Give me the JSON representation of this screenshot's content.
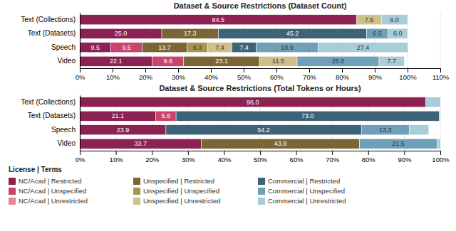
{
  "chart_data": [
    {
      "type": "bar",
      "orientation": "horizontal",
      "stacked": true,
      "data_labels": true,
      "grid": true,
      "title": "Dataset & Source Restrictions (Dataset Count)",
      "categories": [
        "Text (Collections)",
        "Text (Datasets)",
        "Speech",
        "Video"
      ],
      "xlim": [
        0,
        110
      ],
      "xticks": [
        {
          "value": 0,
          "label": "0%"
        },
        {
          "value": 10,
          "label": "10%"
        },
        {
          "value": 20,
          "label": "20%"
        },
        {
          "value": 30,
          "label": "30%"
        },
        {
          "value": 40,
          "label": "40%"
        },
        {
          "value": 50,
          "label": "50%"
        },
        {
          "value": 60,
          "label": "60%"
        },
        {
          "value": 70,
          "label": "70%"
        },
        {
          "value": 80,
          "label": "80%"
        },
        {
          "value": 90,
          "label": "90%"
        },
        {
          "value": 100,
          "label": "100%"
        },
        {
          "value": 110,
          "label": "110%"
        }
      ],
      "series": [
        {
          "name": "NC/Acad | Restricted",
          "color": "#8B2252",
          "values": [
            84.5,
            25.0,
            9.5,
            22.1
          ],
          "value_labels": [
            "84.5",
            "25.0",
            "9.5",
            "22.1"
          ]
        },
        {
          "name": "NC/Acad | Unspecified",
          "color": "#C8436E",
          "values": [
            0,
            0,
            9.5,
            9.6
          ],
          "value_labels": [
            null,
            null,
            "9.5",
            "9.6"
          ]
        },
        {
          "name": "NC/Acad | Unrestricted",
          "color": "#E8849A",
          "values": [
            0,
            0,
            0,
            0
          ],
          "value_labels": [
            null,
            null,
            null,
            null
          ]
        },
        {
          "name": "Unspecified | Restricted",
          "color": "#7A6635",
          "values": [
            0,
            17.3,
            13.7,
            23.1
          ],
          "value_labels": [
            null,
            "17.3",
            "13.7",
            "23.1"
          ]
        },
        {
          "name": "Unspecified | Unspecified",
          "color": "#A89455",
          "values": [
            0,
            0,
            6.3,
            0
          ],
          "value_labels": [
            null,
            null,
            "6.3",
            null
          ]
        },
        {
          "name": "Unspecified | Unrestricted",
          "color": "#CEC08A",
          "values": [
            7.5,
            0,
            7.4,
            11.5
          ],
          "value_labels": [
            "7.5",
            null,
            "7.4",
            "11.5"
          ]
        },
        {
          "name": "Commercial | Restricted",
          "color": "#3E6278",
          "values": [
            0,
            45.2,
            7.4,
            0
          ],
          "value_labels": [
            null,
            "45.2",
            "7.4",
            null
          ]
        },
        {
          "name": "Commercial | Unspecified",
          "color": "#6FA0BA",
          "values": [
            0,
            6.5,
            18.9,
            25.0
          ],
          "value_labels": [
            null,
            "6.5",
            "18.9",
            "25.0"
          ]
        },
        {
          "name": "Commercial | Unrestricted",
          "color": "#A8CDD8",
          "values": [
            8.0,
            6.0,
            27.4,
            7.7
          ],
          "value_labels": [
            "8.0",
            "6.0",
            "27.4",
            "7.7"
          ]
        }
      ]
    },
    {
      "type": "bar",
      "orientation": "horizontal",
      "stacked": true,
      "data_labels": true,
      "grid": true,
      "title": "Dataset & Source Restrictions (Total Tokens or Hours)",
      "categories": [
        "Text (Collections)",
        "Text (Datasets)",
        "Speech",
        "Video"
      ],
      "xlim": [
        0,
        100
      ],
      "xticks": [
        {
          "value": 0,
          "label": "0%"
        },
        {
          "value": 10,
          "label": "10%"
        },
        {
          "value": 20,
          "label": "20%"
        },
        {
          "value": 30,
          "label": "30%"
        },
        {
          "value": 40,
          "label": "40%"
        },
        {
          "value": 50,
          "label": "50%"
        },
        {
          "value": 60,
          "label": "60%"
        },
        {
          "value": 70,
          "label": "70%"
        },
        {
          "value": 80,
          "label": "80%"
        },
        {
          "value": 90,
          "label": "90%"
        },
        {
          "value": 100,
          "label": "100%"
        }
      ],
      "legend": "bottom",
      "legend_title": "License | Terms",
      "series": [
        {
          "name": "NC/Acad | Restricted",
          "color": "#8B2252",
          "values": [
            96.0,
            21.1,
            23.9,
            33.7
          ],
          "value_labels": [
            "96.0",
            "21.1",
            "23.9",
            "33.7"
          ]
        },
        {
          "name": "NC/Acad | Unspecified",
          "color": "#C8436E",
          "values": [
            0,
            5.6,
            0,
            0
          ],
          "value_labels": [
            null,
            "5.6",
            null,
            null
          ]
        },
        {
          "name": "NC/Acad | Unrestricted",
          "color": "#E8849A",
          "values": [
            0,
            0,
            0,
            0
          ],
          "value_labels": [
            null,
            null,
            null,
            null
          ]
        },
        {
          "name": "Unspecified | Restricted",
          "color": "#7A6635",
          "values": [
            0,
            0,
            0,
            43.9
          ],
          "value_labels": [
            null,
            null,
            null,
            "43.9"
          ]
        },
        {
          "name": "Unspecified | Unspecified",
          "color": "#A89455",
          "values": [
            0,
            0,
            0,
            0
          ],
          "value_labels": [
            null,
            null,
            null,
            null
          ]
        },
        {
          "name": "Unspecified | Unrestricted",
          "color": "#CEC08A",
          "values": [
            0,
            0,
            0,
            0
          ],
          "value_labels": [
            null,
            null,
            null,
            null
          ]
        },
        {
          "name": "Commercial | Restricted",
          "color": "#3E6278",
          "values": [
            0,
            73.0,
            54.2,
            0
          ],
          "value_labels": [
            null,
            "73.0",
            "54.2",
            null
          ]
        },
        {
          "name": "Commercial | Unspecified",
          "color": "#6FA0BA",
          "values": [
            0,
            0,
            13.3,
            21.5
          ],
          "value_labels": [
            null,
            null,
            "13.3",
            "21.5"
          ]
        },
        {
          "name": "Commercial | Unrestricted",
          "color": "#A8CDD8",
          "values": [
            4.0,
            0.3,
            5.4,
            0.9
          ],
          "value_labels": [
            null,
            null,
            null,
            null
          ]
        }
      ]
    }
  ]
}
